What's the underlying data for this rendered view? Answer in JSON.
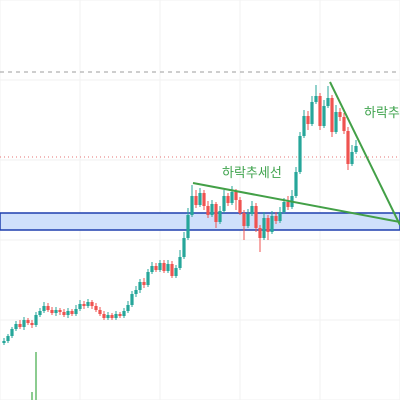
{
  "chart_data": {
    "type": "candlestick",
    "ylim": [
      0,
      400
    ],
    "grid": true,
    "colors": {
      "up": "#26a69a",
      "down": "#ef5350",
      "zone_fill": "#cfe0fb",
      "zone_stroke": "#1e3fae",
      "trendline": "#43a047",
      "ref_gray": "#9e9e9e",
      "ref_red": "#e57373",
      "grid": "#f2f2f2"
    },
    "horizontal_lines": [
      {
        "y": 72,
        "style": "dashed",
        "color": "#9e9e9e"
      },
      {
        "y": 157,
        "style": "dotted",
        "color": "#e57373"
      }
    ],
    "zone": {
      "y_top": 213,
      "y_bottom": 230
    },
    "trendlines": [
      {
        "x1": 193,
        "y1": 183,
        "x2": 400,
        "y2": 222
      },
      {
        "x1": 330,
        "y1": 82,
        "x2": 400,
        "y2": 225
      }
    ],
    "annotations": [
      {
        "text": "하락추세선"
      },
      {
        "text": "하락추"
      }
    ],
    "candles": [
      [
        4,
        343,
        341,
        345,
        338
      ],
      [
        8,
        341,
        336,
        343,
        334
      ],
      [
        12,
        336,
        329,
        338,
        327
      ],
      [
        16,
        329,
        324,
        331,
        321
      ],
      [
        20,
        324,
        327,
        329,
        320
      ],
      [
        24,
        327,
        320,
        330,
        317
      ],
      [
        28,
        320,
        323,
        325,
        318
      ],
      [
        32,
        323,
        325,
        328,
        320
      ],
      [
        36,
        325,
        315,
        327,
        312
      ],
      [
        40,
        315,
        311,
        317,
        308
      ],
      [
        44,
        311,
        306,
        313,
        302
      ],
      [
        48,
        306,
        310,
        312,
        303
      ],
      [
        52,
        310,
        313,
        315,
        307
      ],
      [
        56,
        313,
        310,
        316,
        307
      ],
      [
        60,
        310,
        312,
        315,
        308
      ],
      [
        64,
        312,
        315,
        317,
        309
      ],
      [
        68,
        315,
        311,
        318,
        308
      ],
      [
        72,
        311,
        314,
        316,
        309
      ],
      [
        76,
        314,
        309,
        316,
        305
      ],
      [
        80,
        309,
        304,
        311,
        300
      ],
      [
        84,
        304,
        306,
        309,
        301
      ],
      [
        88,
        306,
        302,
        308,
        299
      ],
      [
        92,
        302,
        306,
        309,
        300
      ],
      [
        96,
        306,
        310,
        312,
        303
      ],
      [
        100,
        310,
        314,
        316,
        307
      ],
      [
        104,
        314,
        318,
        320,
        311
      ],
      [
        108,
        318,
        315,
        320,
        312
      ],
      [
        112,
        315,
        318,
        320,
        313
      ],
      [
        116,
        318,
        314,
        320,
        311
      ],
      [
        120,
        314,
        316,
        318,
        312
      ],
      [
        124,
        316,
        311,
        318,
        308
      ],
      [
        128,
        311,
        305,
        313,
        301
      ],
      [
        132,
        305,
        294,
        307,
        291
      ],
      [
        136,
        294,
        290,
        297,
        286
      ],
      [
        140,
        290,
        282,
        293,
        279
      ],
      [
        144,
        282,
        285,
        288,
        278
      ],
      [
        148,
        285,
        272,
        287,
        269
      ],
      [
        152,
        272,
        266,
        274,
        262
      ],
      [
        156,
        266,
        270,
        272,
        263
      ],
      [
        160,
        270,
        263,
        272,
        260
      ],
      [
        164,
        263,
        271,
        273,
        260
      ],
      [
        168,
        271,
        264,
        273,
        260
      ],
      [
        172,
        264,
        276,
        278,
        261
      ],
      [
        176,
        276,
        268,
        278,
        265
      ],
      [
        180,
        268,
        257,
        270,
        250
      ],
      [
        184,
        257,
        238,
        259,
        232
      ],
      [
        188,
        238,
        215,
        240,
        208
      ],
      [
        192,
        215,
        196,
        217,
        185
      ],
      [
        196,
        196,
        205,
        208,
        190
      ],
      [
        200,
        205,
        193,
        207,
        188
      ],
      [
        204,
        193,
        206,
        210,
        190
      ],
      [
        208,
        206,
        215,
        218,
        201
      ],
      [
        212,
        215,
        204,
        217,
        200
      ],
      [
        216,
        204,
        222,
        228,
        202
      ],
      [
        220,
        222,
        211,
        224,
        206
      ],
      [
        224,
        211,
        196,
        213,
        190
      ],
      [
        228,
        196,
        203,
        206,
        193
      ],
      [
        232,
        203,
        192,
        205,
        186
      ],
      [
        236,
        192,
        200,
        210,
        189
      ],
      [
        240,
        200,
        213,
        215,
        197
      ],
      [
        244,
        213,
        226,
        240,
        210
      ],
      [
        248,
        226,
        214,
        228,
        209
      ],
      [
        252,
        214,
        206,
        216,
        201
      ],
      [
        256,
        206,
        228,
        232,
        203
      ],
      [
        260,
        228,
        238,
        252,
        225
      ],
      [
        264,
        238,
        218,
        240,
        212
      ],
      [
        268,
        218,
        232,
        240,
        215
      ],
      [
        272,
        232,
        216,
        234,
        211
      ],
      [
        276,
        216,
        221,
        224,
        212
      ],
      [
        280,
        221,
        212,
        223,
        207
      ],
      [
        284,
        212,
        202,
        214,
        198
      ],
      [
        288,
        202,
        207,
        210,
        196
      ],
      [
        292,
        207,
        196,
        209,
        190
      ],
      [
        296,
        196,
        172,
        198,
        167
      ],
      [
        300,
        172,
        136,
        174,
        132
      ],
      [
        304,
        136,
        116,
        138,
        110
      ],
      [
        308,
        116,
        124,
        130,
        111
      ],
      [
        312,
        124,
        102,
        126,
        96
      ],
      [
        316,
        102,
        96,
        104,
        85
      ],
      [
        320,
        96,
        126,
        130,
        93
      ],
      [
        324,
        126,
        106,
        128,
        100
      ],
      [
        328,
        106,
        98,
        108,
        86
      ],
      [
        332,
        98,
        132,
        137,
        95
      ],
      [
        336,
        132,
        112,
        134,
        105
      ],
      [
        340,
        112,
        117,
        121,
        108
      ],
      [
        344,
        117,
        131,
        134,
        113
      ],
      [
        348,
        131,
        164,
        170,
        127
      ],
      [
        352,
        164,
        152,
        166,
        145
      ],
      [
        356,
        152,
        146,
        154,
        140
      ]
    ]
  }
}
